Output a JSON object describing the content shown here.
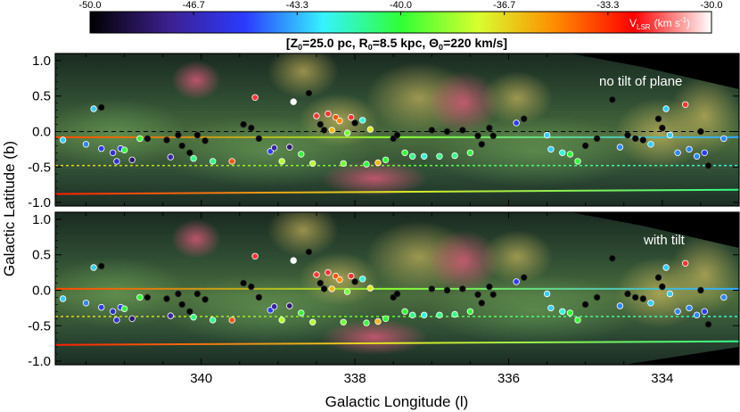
{
  "colors": {
    "cmap": [
      "#000000",
      "#3c1f8c",
      "#2b3bff",
      "#36f2ff",
      "#2fff36",
      "#d8ff2e",
      "#ff8a00",
      "#ff0000",
      "#ffffff"
    ],
    "background_dark": "#1c3124",
    "frame": "#000000"
  },
  "colorbar": {
    "title_v": "V",
    "title_sub": "LSR",
    "title_unit": "(km s",
    "title_exp": "-1",
    "title_close": ")",
    "range": [
      -50.0,
      -30.0
    ],
    "ticks": [
      "-50.0",
      "-46.7",
      "-43.3",
      "-40.0",
      "-36.7",
      "-33.3",
      "-30.0"
    ]
  },
  "header": {
    "open": "[Z",
    "z_sub": "0",
    "z_val": "=25.0 pc, R",
    "r_sub": "0",
    "r_val": "=8.5 kpc, Θ",
    "t_sub": "0",
    "t_val": "=220 km/s]"
  },
  "chart_data": [
    {
      "type": "scatter",
      "panel": "top",
      "annotation": "no tilt of plane",
      "xlabel": "Galactic Longitude (l)",
      "ylabel": "Galactic Latitude (b)",
      "xlim": [
        341.9,
        333.0
      ],
      "ylim": [
        -1.05,
        1.1
      ],
      "yticks": [
        "1.0",
        "0.5",
        "0.0",
        "-0.5",
        "-1.0"
      ],
      "grid": false,
      "reference_lines": [
        {
          "b_left": -0.08,
          "b_right": -0.08,
          "v_left": -33.8,
          "v_right": -43.5,
          "style": "solid"
        },
        {
          "b_left": -0.48,
          "b_right": -0.48,
          "v_left": -36.5,
          "v_right": -42.0,
          "style": "dotted"
        },
        {
          "b_left": -0.88,
          "b_right": -0.82,
          "v_left": -33.0,
          "v_right": -41.0,
          "style": "solid"
        }
      ],
      "dashed_line_b": 0.0,
      "points": [
        [
          341.4,
          0.32,
          -43
        ],
        [
          341.3,
          0.34,
          -50
        ],
        [
          341.8,
          -0.12,
          -43
        ],
        [
          341.5,
          -0.18,
          -44
        ],
        [
          341.3,
          -0.24,
          -45
        ],
        [
          341.15,
          -0.3,
          -46
        ],
        [
          341.05,
          -0.24,
          -45
        ],
        [
          341.0,
          -0.26,
          -40
        ],
        [
          341.1,
          -0.42,
          -46
        ],
        [
          340.9,
          -0.4,
          -48
        ],
        [
          340.8,
          -0.1,
          -40
        ],
        [
          340.7,
          -0.1,
          -50
        ],
        [
          340.45,
          -0.12,
          -50
        ],
        [
          340.4,
          -0.36,
          -47
        ],
        [
          340.3,
          -0.05,
          -50
        ],
        [
          340.25,
          -0.2,
          -50
        ],
        [
          340.15,
          -0.3,
          -50
        ],
        [
          340.1,
          -0.38,
          -41
        ],
        [
          340.05,
          -0.05,
          -50
        ],
        [
          339.95,
          -0.13,
          -50
        ],
        [
          339.85,
          -0.42,
          -41
        ],
        [
          339.6,
          -0.42,
          -34
        ],
        [
          339.45,
          0.1,
          -50
        ],
        [
          339.35,
          0.05,
          -50
        ],
        [
          339.3,
          0.48,
          -32
        ],
        [
          339.25,
          -0.1,
          -50
        ],
        [
          339.1,
          -0.28,
          -45
        ],
        [
          339.05,
          -0.23,
          -47
        ],
        [
          338.95,
          -0.42,
          -38
        ],
        [
          338.85,
          -0.22,
          -48
        ],
        [
          338.8,
          0.42,
          -30
        ],
        [
          338.6,
          0.54,
          -50
        ],
        [
          338.7,
          -0.32,
          -40
        ],
        [
          338.55,
          -0.45,
          -38
        ],
        [
          338.5,
          0.22,
          -32
        ],
        [
          338.45,
          0.1,
          -50
        ],
        [
          338.4,
          0.02,
          -50
        ],
        [
          338.35,
          0.25,
          -32
        ],
        [
          338.3,
          0.02,
          -36
        ],
        [
          338.25,
          0.2,
          -34
        ],
        [
          338.2,
          0.15,
          -35
        ],
        [
          338.15,
          -0.45,
          -39
        ],
        [
          338.1,
          -0.02,
          -39
        ],
        [
          338.05,
          0.2,
          -32
        ],
        [
          338.0,
          0.12,
          -50
        ],
        [
          337.9,
          0.16,
          -42
        ],
        [
          337.85,
          -0.46,
          -40
        ],
        [
          337.8,
          0.03,
          -37
        ],
        [
          337.7,
          -0.44,
          -36
        ],
        [
          337.6,
          -0.4,
          -40
        ],
        [
          337.5,
          -0.1,
          -50
        ],
        [
          337.45,
          -0.05,
          -50
        ],
        [
          337.35,
          -0.3,
          -40
        ],
        [
          337.25,
          -0.35,
          -41
        ],
        [
          337.1,
          -0.35,
          -42
        ],
        [
          337.0,
          0.02,
          -50
        ],
        [
          336.9,
          -0.35,
          -41
        ],
        [
          336.8,
          0.0,
          -50
        ],
        [
          336.7,
          -0.34,
          -41
        ],
        [
          336.6,
          0.02,
          -50
        ],
        [
          336.5,
          -0.3,
          -40
        ],
        [
          336.4,
          -0.06,
          -50
        ],
        [
          336.35,
          -0.18,
          -50
        ],
        [
          336.25,
          0.05,
          -50
        ],
        [
          336.2,
          -0.06,
          -50
        ],
        [
          335.9,
          0.12,
          -45
        ],
        [
          335.8,
          0.18,
          -50
        ],
        [
          335.5,
          -0.05,
          -43
        ],
        [
          335.45,
          -0.25,
          -43
        ],
        [
          335.3,
          -0.3,
          -42
        ],
        [
          335.2,
          -0.32,
          -40
        ],
        [
          335.1,
          -0.42,
          -40
        ],
        [
          335.0,
          -0.2,
          -50
        ],
        [
          334.85,
          -0.1,
          -50
        ],
        [
          334.65,
          0.45,
          -50
        ],
        [
          334.55,
          -0.22,
          -44
        ],
        [
          334.45,
          -0.05,
          -50
        ],
        [
          334.35,
          -0.1,
          -50
        ],
        [
          334.25,
          -0.12,
          -50
        ],
        [
          334.15,
          -0.18,
          -43
        ],
        [
          334.05,
          0.18,
          -50
        ],
        [
          334.0,
          0.05,
          -50
        ],
        [
          333.95,
          0.32,
          -43
        ],
        [
          333.9,
          -0.05,
          -43
        ],
        [
          333.8,
          -0.3,
          -44
        ],
        [
          333.7,
          0.38,
          -32
        ],
        [
          333.65,
          -0.25,
          -44
        ],
        [
          333.55,
          -0.35,
          -44
        ],
        [
          333.5,
          0.0,
          -50
        ],
        [
          333.45,
          -0.3,
          -45
        ],
        [
          333.4,
          -0.48,
          -50
        ],
        [
          333.2,
          -0.1,
          -44
        ]
      ]
    },
    {
      "type": "scatter",
      "panel": "bottom",
      "annotation": "with tilt",
      "xlabel": "Galactic Longitude (l)",
      "ylabel": "Galactic Latitude (b)",
      "xlim": [
        341.9,
        333.0
      ],
      "ylim": [
        -1.05,
        1.1
      ],
      "xticks": [
        "340",
        "338",
        "336",
        "334"
      ],
      "yticks": [
        "1.0",
        "0.5",
        "0.0",
        "-0.5",
        "-1.0"
      ],
      "grid": false,
      "reference_lines": [
        {
          "b_left": 0.02,
          "b_right": 0.02,
          "v_left": -33.8,
          "v_right": -43.5,
          "style": "solid"
        },
        {
          "b_left": -0.37,
          "b_right": -0.37,
          "v_left": -36.5,
          "v_right": -42.0,
          "style": "dotted"
        },
        {
          "b_left": -0.77,
          "b_right": -0.72,
          "v_left": -33.0,
          "v_right": -41.0,
          "style": "solid"
        }
      ],
      "points": [
        [
          341.4,
          0.32,
          -43
        ],
        [
          341.3,
          0.34,
          -50
        ],
        [
          341.8,
          -0.12,
          -43
        ],
        [
          341.5,
          -0.18,
          -44
        ],
        [
          341.3,
          -0.24,
          -45
        ],
        [
          341.15,
          -0.3,
          -46
        ],
        [
          341.05,
          -0.24,
          -45
        ],
        [
          341.0,
          -0.26,
          -40
        ],
        [
          341.1,
          -0.42,
          -46
        ],
        [
          340.9,
          -0.4,
          -48
        ],
        [
          340.8,
          -0.1,
          -40
        ],
        [
          340.7,
          -0.1,
          -50
        ],
        [
          340.45,
          -0.12,
          -50
        ],
        [
          340.4,
          -0.36,
          -47
        ],
        [
          340.3,
          -0.05,
          -50
        ],
        [
          340.25,
          -0.2,
          -50
        ],
        [
          340.15,
          -0.3,
          -50
        ],
        [
          340.1,
          -0.38,
          -41
        ],
        [
          340.05,
          -0.05,
          -50
        ],
        [
          339.95,
          -0.13,
          -50
        ],
        [
          339.85,
          -0.42,
          -41
        ],
        [
          339.6,
          -0.42,
          -34
        ],
        [
          339.45,
          0.1,
          -50
        ],
        [
          339.35,
          0.05,
          -50
        ],
        [
          339.3,
          0.48,
          -32
        ],
        [
          339.25,
          -0.1,
          -50
        ],
        [
          339.1,
          -0.28,
          -45
        ],
        [
          339.05,
          -0.23,
          -47
        ],
        [
          338.95,
          -0.42,
          -38
        ],
        [
          338.85,
          -0.22,
          -48
        ],
        [
          338.8,
          0.42,
          -30
        ],
        [
          338.6,
          0.54,
          -50
        ],
        [
          338.7,
          -0.32,
          -40
        ],
        [
          338.55,
          -0.45,
          -38
        ],
        [
          338.5,
          0.22,
          -32
        ],
        [
          338.45,
          0.1,
          -50
        ],
        [
          338.4,
          0.02,
          -50
        ],
        [
          338.35,
          0.25,
          -32
        ],
        [
          338.3,
          0.02,
          -36
        ],
        [
          338.25,
          0.2,
          -34
        ],
        [
          338.2,
          0.15,
          -35
        ],
        [
          338.15,
          -0.45,
          -39
        ],
        [
          338.1,
          -0.02,
          -39
        ],
        [
          338.05,
          0.2,
          -32
        ],
        [
          338.0,
          0.12,
          -50
        ],
        [
          337.9,
          0.16,
          -42
        ],
        [
          337.85,
          -0.46,
          -40
        ],
        [
          337.8,
          0.03,
          -37
        ],
        [
          337.7,
          -0.44,
          -36
        ],
        [
          337.6,
          -0.4,
          -40
        ],
        [
          337.5,
          -0.1,
          -50
        ],
        [
          337.45,
          -0.05,
          -50
        ],
        [
          337.35,
          -0.3,
          -40
        ],
        [
          337.25,
          -0.35,
          -41
        ],
        [
          337.1,
          -0.35,
          -42
        ],
        [
          337.0,
          0.02,
          -50
        ],
        [
          336.9,
          -0.35,
          -41
        ],
        [
          336.8,
          0.0,
          -50
        ],
        [
          336.7,
          -0.34,
          -41
        ],
        [
          336.6,
          0.02,
          -50
        ],
        [
          336.5,
          -0.3,
          -40
        ],
        [
          336.4,
          -0.06,
          -50
        ],
        [
          336.35,
          -0.18,
          -50
        ],
        [
          336.25,
          0.05,
          -50
        ],
        [
          336.2,
          -0.06,
          -50
        ],
        [
          335.9,
          0.12,
          -45
        ],
        [
          335.8,
          0.18,
          -50
        ],
        [
          335.5,
          -0.05,
          -43
        ],
        [
          335.45,
          -0.25,
          -43
        ],
        [
          335.3,
          -0.3,
          -42
        ],
        [
          335.2,
          -0.32,
          -40
        ],
        [
          335.1,
          -0.42,
          -40
        ],
        [
          335.0,
          -0.2,
          -50
        ],
        [
          334.85,
          -0.1,
          -50
        ],
        [
          334.65,
          0.45,
          -50
        ],
        [
          334.55,
          -0.22,
          -44
        ],
        [
          334.45,
          -0.05,
          -50
        ],
        [
          334.35,
          -0.1,
          -50
        ],
        [
          334.25,
          -0.12,
          -50
        ],
        [
          334.15,
          -0.18,
          -43
        ],
        [
          334.05,
          0.18,
          -50
        ],
        [
          334.0,
          0.05,
          -50
        ],
        [
          333.95,
          0.32,
          -43
        ],
        [
          333.9,
          -0.05,
          -43
        ],
        [
          333.8,
          -0.3,
          -44
        ],
        [
          333.7,
          0.38,
          -32
        ],
        [
          333.65,
          -0.25,
          -44
        ],
        [
          333.55,
          -0.35,
          -44
        ],
        [
          333.5,
          0.0,
          -50
        ],
        [
          333.45,
          -0.3,
          -45
        ],
        [
          333.4,
          -0.48,
          -50
        ],
        [
          333.2,
          -0.1,
          -44
        ]
      ]
    }
  ]
}
